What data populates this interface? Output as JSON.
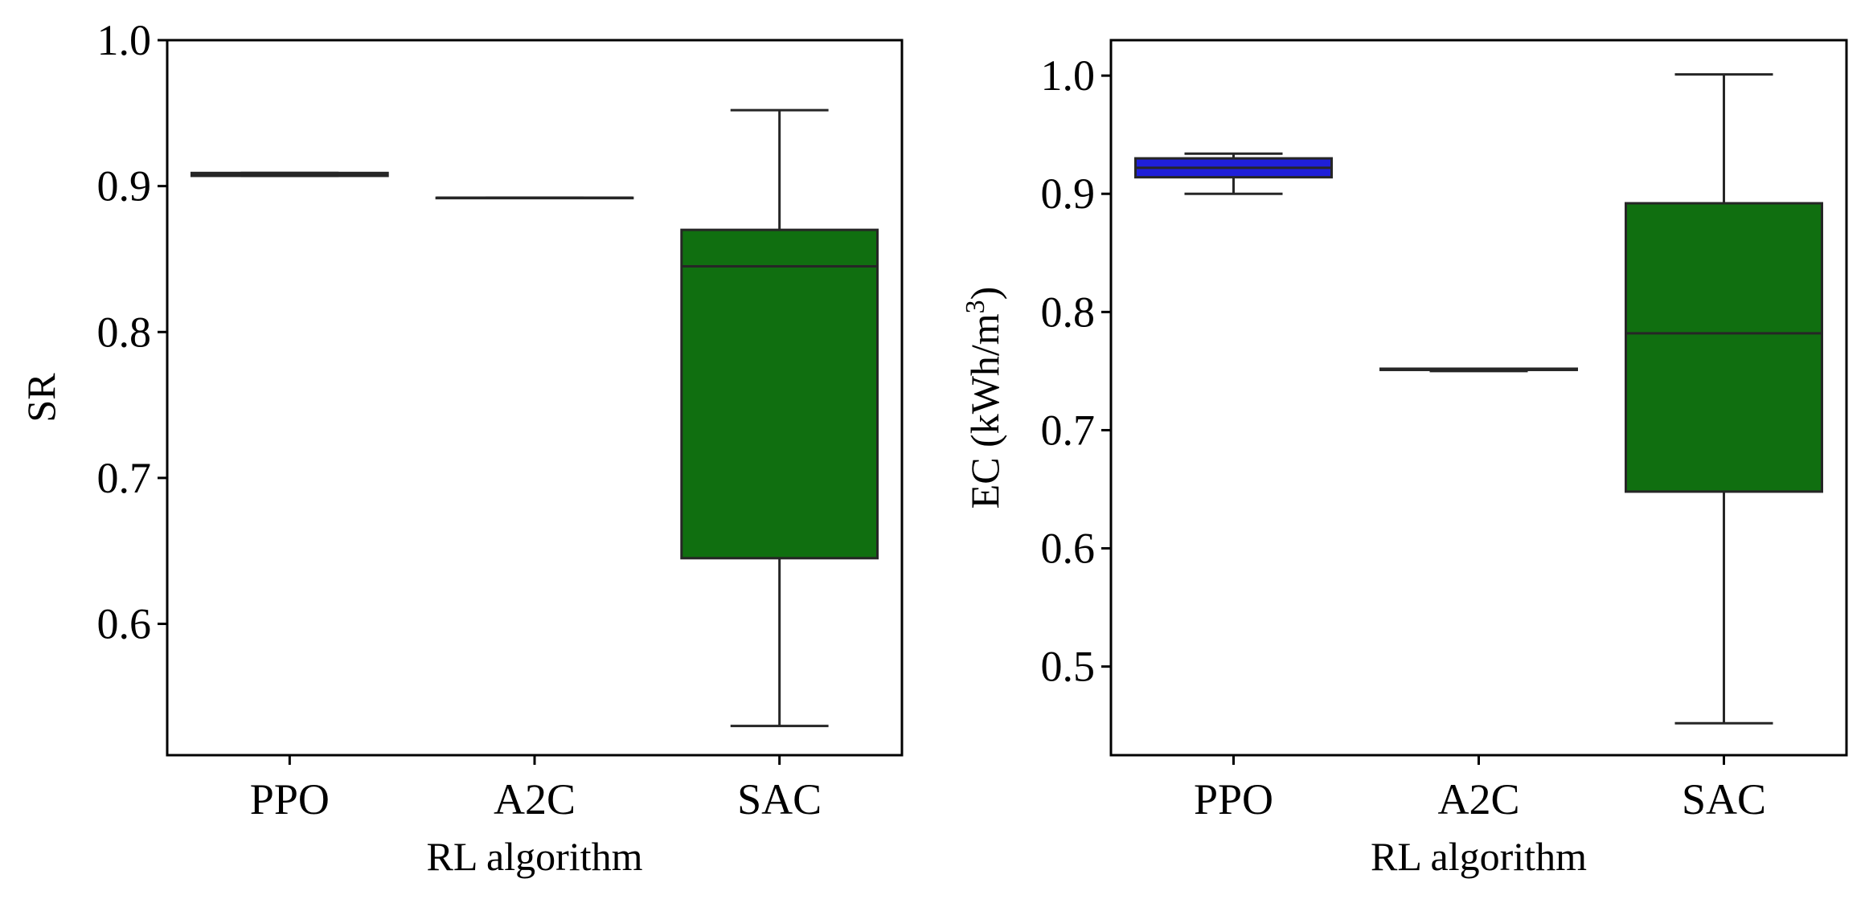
{
  "chart_data": [
    {
      "type": "box",
      "xlabel": "RL algorithm",
      "ylabel": "SR",
      "ylim": [
        0.51,
        1.0
      ],
      "yticks": [
        0.6,
        0.7,
        0.8,
        0.9,
        1.0
      ],
      "ytick_labels": [
        "0.6",
        "0.7",
        "0.8",
        "0.9",
        "1.0"
      ],
      "categories": [
        "PPO",
        "A2C",
        "SAC"
      ],
      "boxes": [
        {
          "category": "PPO",
          "whislo": 0.907,
          "q1": 0.907,
          "med": 0.908,
          "q3": 0.909,
          "whishi": 0.909,
          "color": "#1f1fd9"
        },
        {
          "category": "A2C",
          "whislo": 0.892,
          "q1": 0.892,
          "med": 0.892,
          "q3": 0.892,
          "whishi": 0.892,
          "color": "#e8e8e8"
        },
        {
          "category": "SAC",
          "whislo": 0.53,
          "q1": 0.645,
          "med": 0.845,
          "q3": 0.87,
          "whishi": 0.952,
          "color": "#106f10"
        }
      ],
      "grid": false
    },
    {
      "type": "box",
      "xlabel": "RL algorithm",
      "ylabel": "EC (kWh/m",
      "ylabel_sup": "3",
      "ylabel_close": ")",
      "ylim": [
        0.425,
        1.03
      ],
      "yticks": [
        0.5,
        0.6,
        0.7,
        0.8,
        0.9,
        1.0
      ],
      "ytick_labels": [
        "0.5",
        "0.6",
        "0.7",
        "0.8",
        "0.9",
        "1.0"
      ],
      "categories": [
        "PPO",
        "A2C",
        "SAC"
      ],
      "boxes": [
        {
          "category": "PPO",
          "whislo": 0.9,
          "q1": 0.914,
          "med": 0.922,
          "q3": 0.93,
          "whishi": 0.934,
          "color": "#1f1fd9"
        },
        {
          "category": "A2C",
          "whislo": 0.75,
          "q1": 0.751,
          "med": 0.751,
          "q3": 0.752,
          "whishi": 0.752,
          "color": "#e8e8e8"
        },
        {
          "category": "SAC",
          "whislo": 0.452,
          "q1": 0.648,
          "med": 0.782,
          "q3": 0.892,
          "whishi": 1.001,
          "color": "#106f10"
        }
      ],
      "grid": false
    }
  ]
}
